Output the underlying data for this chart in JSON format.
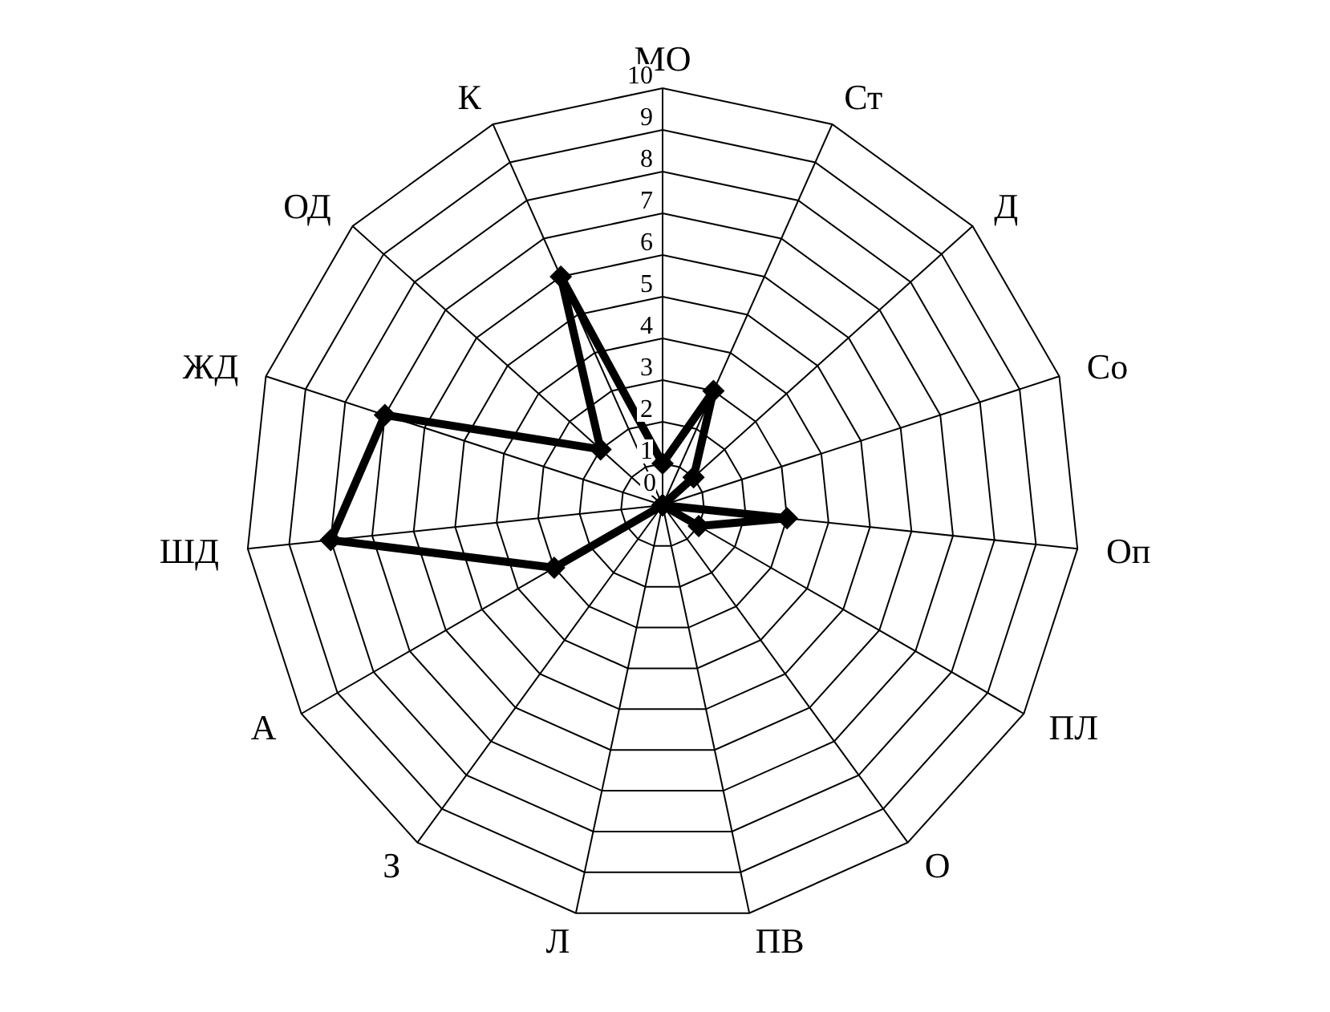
{
  "chart_data": {
    "type": "radar",
    "categories": [
      "МО",
      "Ст",
      "Д",
      "Со",
      "Оп",
      "ПЛ",
      "О",
      "ПВ",
      "Л",
      "З",
      "А",
      "ШД",
      "ЖД",
      "ОД",
      "К"
    ],
    "series": [
      {
        "color": "#000000",
        "values": [
          1,
          3,
          1,
          0,
          3,
          1,
          0,
          0,
          0,
          0,
          3,
          8,
          7,
          2,
          6
        ]
      }
    ],
    "ylim": [
      0,
      10
    ],
    "yticks": [
      0,
      1,
      2,
      3,
      4,
      5,
      6,
      7,
      8,
      9,
      10
    ],
    "grid": true,
    "marker": "diamond"
  }
}
